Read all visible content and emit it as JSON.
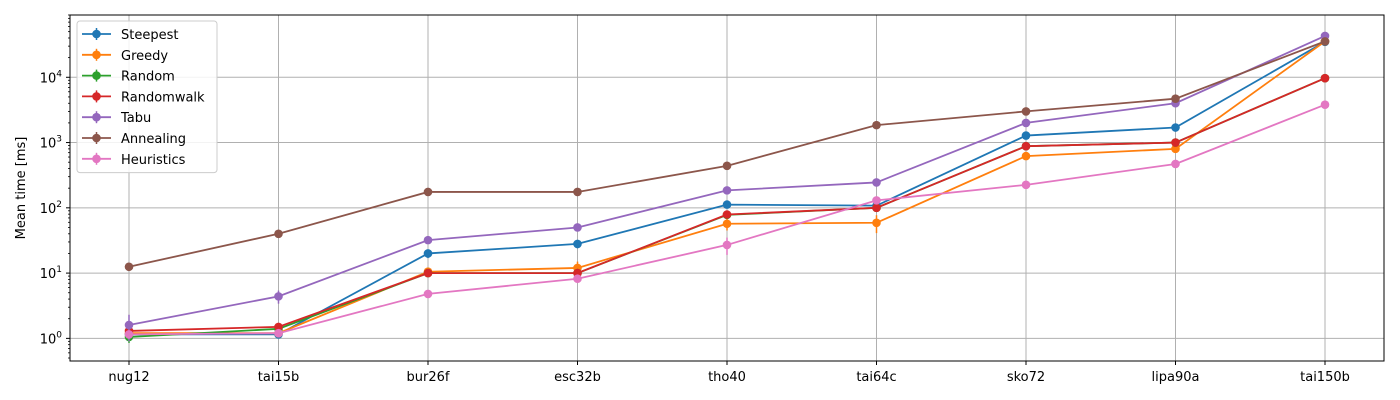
{
  "chart_data": {
    "type": "line",
    "title": "",
    "xlabel": "",
    "ylabel": "Mean time [ms]",
    "yscale": "log",
    "ylim": [
      0.45,
      90000
    ],
    "grid": true,
    "legend": "top-left",
    "categories": [
      "nug12",
      "tai15b",
      "bur26f",
      "esc32b",
      "tho40",
      "tai64c",
      "sko72",
      "lipa90a",
      "tai150b"
    ],
    "y_ticks": [
      {
        "value": 1,
        "label": "10",
        "exp": "0"
      },
      {
        "value": 10,
        "label": "10",
        "exp": "1"
      },
      {
        "value": 100,
        "label": "10",
        "exp": "2"
      },
      {
        "value": 1000,
        "label": "10",
        "exp": "3"
      },
      {
        "value": 10000,
        "label": "10",
        "exp": "4"
      }
    ],
    "series": [
      {
        "name": "Steepest",
        "color": "#1f77b4",
        "values": [
          1.15,
          1.15,
          20,
          28,
          112,
          108,
          1280,
          1700,
          35000
        ],
        "errors": [
          0.1,
          0.1,
          3,
          4,
          8,
          8,
          60,
          80,
          1500
        ]
      },
      {
        "name": "Greedy",
        "color": "#ff7f0e",
        "values": [
          1.2,
          1.2,
          10.5,
          12,
          57,
          59,
          620,
          800,
          35500
        ],
        "errors": [
          0.1,
          0.15,
          1.5,
          3,
          12,
          18,
          40,
          60,
          1500
        ]
      },
      {
        "name": "Random",
        "color": "#2ca02c",
        "values": [
          1.05,
          1.4,
          10,
          10,
          78,
          100,
          880,
          1000,
          9700
        ],
        "errors": [
          0.2,
          0.2,
          1,
          1,
          5,
          5,
          30,
          40,
          300
        ]
      },
      {
        "name": "Randomwalk",
        "color": "#d62728",
        "values": [
          1.3,
          1.5,
          10,
          10,
          79,
          100,
          880,
          1000,
          9700
        ],
        "errors": [
          0.15,
          0.2,
          1,
          1,
          5,
          5,
          30,
          40,
          300
        ]
      },
      {
        "name": "Tabu",
        "color": "#9467bd",
        "values": [
          1.6,
          4.4,
          32,
          50,
          185,
          245,
          2000,
          4000,
          43000
        ],
        "errors": [
          0.7,
          1.0,
          3,
          5,
          10,
          15,
          100,
          200,
          1500
        ]
      },
      {
        "name": "Annealing",
        "color": "#8c564b",
        "values": [
          12.5,
          40,
          175,
          175,
          440,
          1850,
          3000,
          4700,
          35500
        ],
        "errors": [
          0.5,
          2,
          5,
          5,
          15,
          40,
          80,
          120,
          800
        ]
      },
      {
        "name": "Heuristics",
        "color": "#e377c2",
        "values": [
          1.15,
          1.2,
          4.8,
          8.2,
          27,
          130,
          225,
          470,
          3800
        ],
        "errors": [
          0.1,
          0.1,
          0.3,
          0.6,
          8,
          15,
          15,
          30,
          150
        ]
      }
    ]
  }
}
